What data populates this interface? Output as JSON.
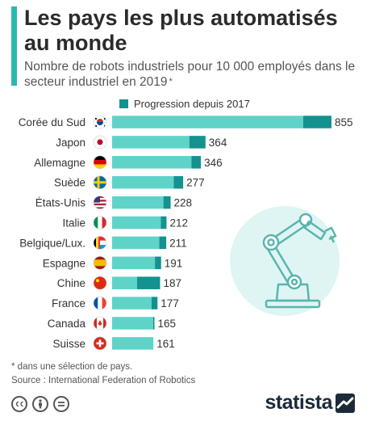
{
  "title": "Les pays les plus automatisés au monde",
  "subtitle": "Nombre de robots industriels pour 10 000 employés dans le secteur industriel en 2019",
  "subtitle_marker": "*",
  "legend": {
    "label": "Progression depuis 2017"
  },
  "colors": {
    "accent": "#2bb7ae",
    "bar_base": "#5fd3c8",
    "bar_progress": "#14928f",
    "robot_circle": "#dff5f4",
    "robot_stroke": "#59b5ad",
    "text": "#333333"
  },
  "chart_data": {
    "type": "bar",
    "orientation": "horizontal",
    "stacked": true,
    "categories": [
      "Corée du Sud",
      "Japon",
      "Allemagne",
      "Suède",
      "États-Unis",
      "Italie",
      "Belgique/Lux.",
      "Espagne",
      "Chine",
      "France",
      "Canada",
      "Suisse"
    ],
    "values": [
      855,
      364,
      346,
      277,
      228,
      212,
      211,
      191,
      187,
      177,
      165,
      161
    ],
    "series": [
      {
        "name": "",
        "values": [
          745,
          301,
          309,
          240,
          200,
          190,
          184,
          167,
          97,
          154,
          160,
          161
        ]
      },
      {
        "name": "Progression depuis 2017",
        "values": [
          110,
          63,
          37,
          37,
          28,
          22,
          27,
          24,
          90,
          23,
          5,
          0
        ]
      }
    ],
    "flags": [
      "south-korea-flag",
      "japan-flag",
      "germany-flag",
      "sweden-flag",
      "usa-flag",
      "italy-flag",
      "belgium-luxembourg-flag",
      "spain-flag",
      "china-flag",
      "france-flag",
      "canada-flag",
      "switzerland-flag"
    ],
    "xlim": [
      0,
      855
    ],
    "grid": false,
    "legend_position": "top"
  },
  "footnote": {
    "note": "* dans une sélection de pays.",
    "source": "Source : International Federation of Robotics"
  },
  "license_icons": [
    "creative-commons-icon",
    "attribution-icon",
    "no-derivatives-icon"
  ],
  "brand": {
    "name": "statista"
  }
}
